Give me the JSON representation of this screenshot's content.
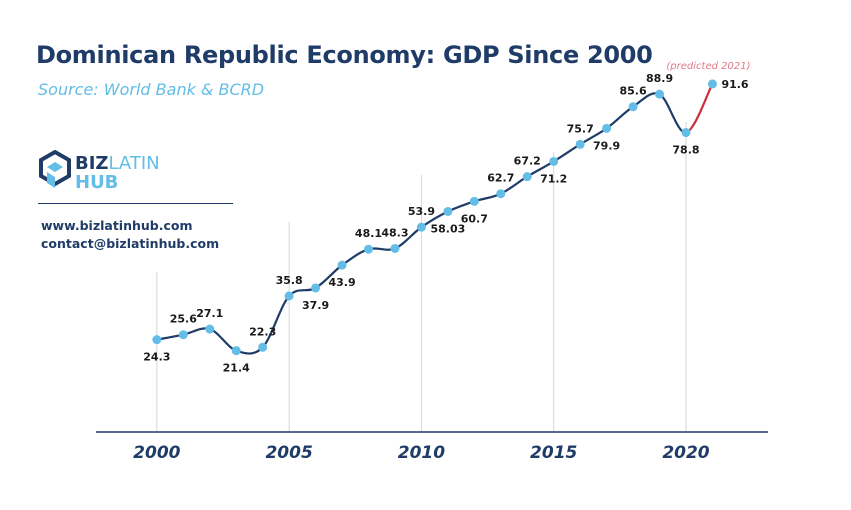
{
  "header": {
    "title": "Dominican Republic Economy: GDP Since 2000",
    "subtitle": "Source: World Bank & BCRD"
  },
  "brand": {
    "logo_top": "BIZ",
    "logo_top_accent": "LATIN",
    "logo_bottom": "HUB",
    "website": "www.bizlatinhub.com",
    "email": "contact@bizlatinhub.com"
  },
  "colors": {
    "navy": "#1f3c68",
    "point": "#63bde6",
    "predicted": "#c8303f",
    "predicted_label": "#e07a88",
    "gridline": "#d6d6d6"
  },
  "chart_data": {
    "type": "line",
    "x": [
      2000,
      2001,
      2002,
      2003,
      2004,
      2005,
      2006,
      2007,
      2008,
      2009,
      2010,
      2011,
      2012,
      2013,
      2014,
      2015,
      2016,
      2017,
      2018,
      2019,
      2020,
      2021
    ],
    "values": [
      24.3,
      25.6,
      27.1,
      21.4,
      22.3,
      35.8,
      37.9,
      43.9,
      48.1,
      48.3,
      53.9,
      58.03,
      60.7,
      62.7,
      67.2,
      71.2,
      75.7,
      79.9,
      85.6,
      88.9,
      78.8,
      91.6
    ],
    "labels": [
      "24.3",
      "25.6",
      "27.1",
      "21.4",
      "22.3",
      "35.8",
      "37.9",
      "43.9",
      "48.1",
      "48.3",
      "53.9",
      "58.03",
      "60.7",
      "62.7",
      "67.2",
      "71.2",
      "75.7",
      "79.9",
      "85.6",
      "88.9",
      "78.8",
      "91.6"
    ],
    "label_position": [
      "below",
      "above",
      "above",
      "below",
      "above",
      "above",
      "below",
      "below",
      "above",
      "above",
      "above",
      "below",
      "below",
      "above",
      "above",
      "below",
      "above",
      "below",
      "above",
      "above",
      "below",
      "right"
    ],
    "x_ticks": [
      2000,
      2005,
      2010,
      2015,
      2020
    ],
    "x_tick_labels": [
      "2000",
      "2005",
      "2010",
      "2015",
      "2020"
    ],
    "predicted_from_x": 2020,
    "predicted_note": "(predicted 2021)",
    "xlim": [
      1997.7,
      2023.1
    ],
    "ylim": [
      0,
      100
    ],
    "grid": "vertical at x ticks",
    "legend": "none"
  }
}
